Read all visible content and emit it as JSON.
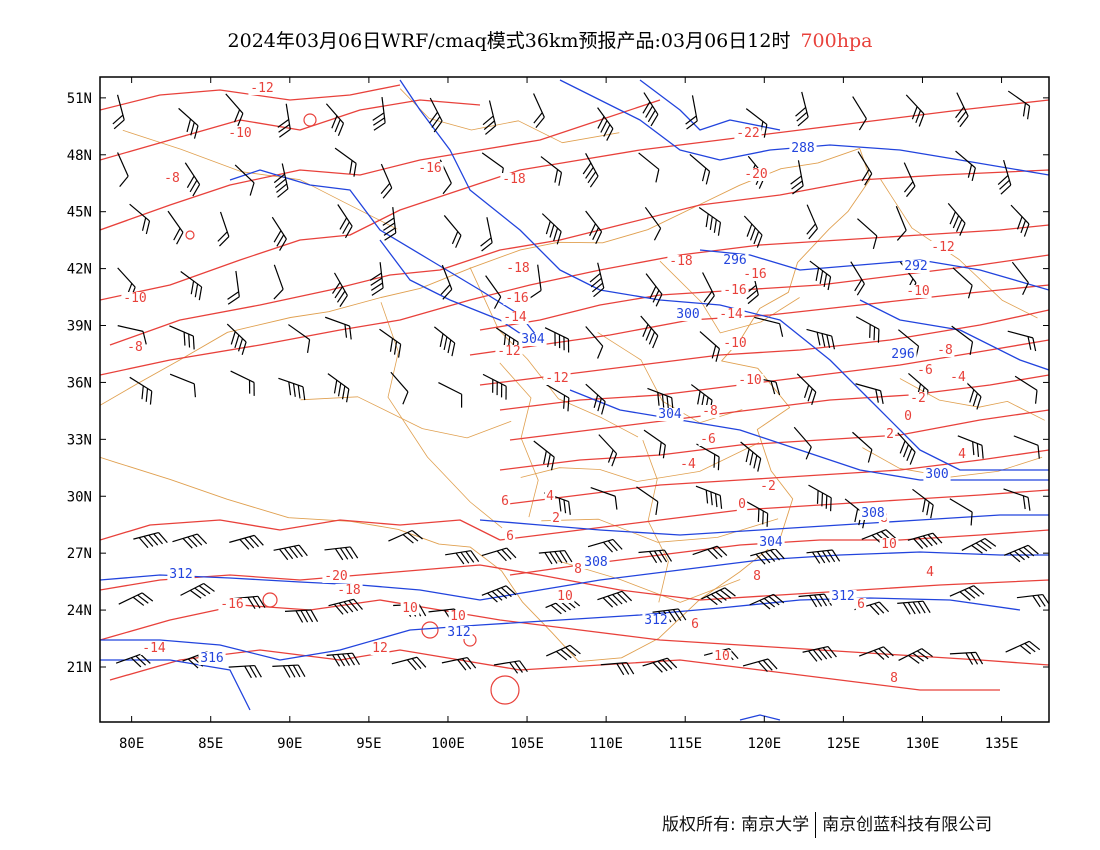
{
  "header": {
    "title": "2024年03月06日WRF/cmaq模式36km预报产品:03月06日12时",
    "level": "700hpa",
    "level_color": "#e8413b"
  },
  "axes": {
    "lat_labels": [
      "51N",
      "48N",
      "45N",
      "42N",
      "39N",
      "36N",
      "33N",
      "30N",
      "27N",
      "24N",
      "21N"
    ],
    "lon_labels": [
      "80E",
      "85E",
      "90E",
      "95E",
      "100E",
      "105E",
      "110E",
      "115E",
      "120E",
      "125E",
      "130E",
      "135E"
    ]
  },
  "legend_colors": {
    "temperature": "#e8413b",
    "height": "#2244dd",
    "boundary": "#e0a050",
    "wind": "#000000"
  },
  "temperature_labels": [
    "-12",
    "-10",
    "-8",
    "-10",
    "-8",
    "-16",
    "-18",
    "-22",
    "-20",
    "-18",
    "-16",
    "-16",
    "-18",
    "-16",
    "-14",
    "-14",
    "-12",
    "-10",
    "-12",
    "-10",
    "-8",
    "-6",
    "-4",
    "-2",
    "0",
    "2",
    "4",
    "6",
    "8",
    "10",
    "12",
    "-20",
    "-18",
    "-16",
    "-14",
    "-12",
    "-10",
    "-8",
    "-6",
    "-4",
    "-2",
    "0",
    "2",
    "4",
    "6",
    "8",
    "10",
    "4",
    "6",
    "8",
    "10",
    "8",
    "6",
    "10",
    "10",
    "6"
  ],
  "height_labels": [
    "288",
    "296",
    "292",
    "296",
    "300",
    "304",
    "304",
    "300",
    "308",
    "304",
    "308",
    "312",
    "312",
    "312",
    "316",
    "312"
  ],
  "footer": {
    "copyright": "版权所有: 南京大学",
    "company": "南京创蓝科技有限公司"
  }
}
